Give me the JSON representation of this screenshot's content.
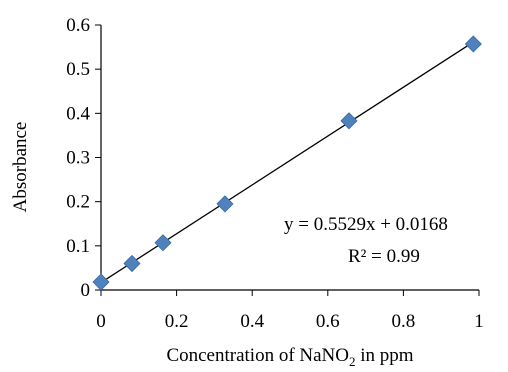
{
  "chart_data": {
    "type": "scatter",
    "xlabel_main": "Concentration of NaNO",
    "xlabel_sub": "2",
    "xlabel_tail": " in ppm",
    "ylabel": "Absorbance",
    "xlim": [
      0,
      1
    ],
    "ylim": [
      0,
      0.6
    ],
    "x_ticks": [
      0,
      0.2,
      0.4,
      0.6,
      0.8,
      1
    ],
    "x_tick_labels": [
      "0",
      "0.2",
      "0.4",
      "0.6",
      "0.8",
      "1"
    ],
    "y_ticks": [
      0,
      0.1,
      0.2,
      0.3,
      0.4,
      0.5,
      0.6
    ],
    "y_tick_labels": [
      "0",
      "0.1",
      "0.2",
      "0.3",
      "0.4",
      "0.5",
      "0.6"
    ],
    "grid": false,
    "legend": "none",
    "series": [
      {
        "x": [
          0,
          0.082,
          0.164,
          0.328,
          0.656,
          0.985
        ],
        "y": [
          0.018,
          0.06,
          0.107,
          0.195,
          0.383,
          0.557
        ],
        "marker": "diamond",
        "color": "#4f81bd"
      }
    ],
    "trendline": {
      "type": "linear",
      "slope": 0.5529,
      "intercept": 0.0168,
      "x_range": [
        0,
        0.985
      ],
      "color": "#000000",
      "equation_label": "y = 0.5529x + 0.0168",
      "r2_label": "R² = 0.99"
    }
  }
}
